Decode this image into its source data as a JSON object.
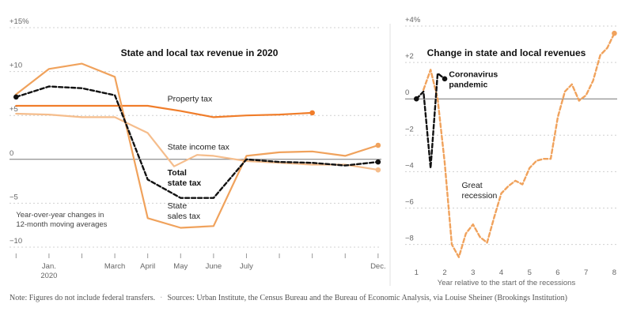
{
  "colors": {
    "property": "#f07d2a",
    "income": "#f5bd8c",
    "sales": "#f0a25c",
    "total": "#111111",
    "recession": "#f0a25c",
    "pandemic": "#111111"
  },
  "footer": {
    "note": "Note: Figures do not include federal transfers.",
    "separator": "·",
    "sources": "Sources: Urban Institute, the Census Bureau and the Bureau of Economic Analysis, via Louise Sheiner (Brookings Institution)"
  },
  "chart_data": [
    {
      "type": "line",
      "title": "State and local tax revenue in 2020",
      "annotation": [
        "Year-over-year changes in",
        "12-month moving averages"
      ],
      "ylim": [
        -10,
        15
      ],
      "yticks": [
        15,
        10,
        5,
        0,
        -5,
        -10
      ],
      "ytick_labels": [
        "+15%",
        "+10",
        "+5",
        "0",
        "−5",
        "−10"
      ],
      "x_range": [
        -0.2,
        11.1
      ],
      "xtick_positions": [
        0,
        1,
        2,
        3,
        4,
        5,
        6,
        7,
        8,
        9,
        10,
        11
      ],
      "xtick_labels": [
        {
          "x": 1,
          "lines": [
            "Jan.",
            "2020"
          ]
        },
        {
          "x": 3,
          "lines": [
            "March"
          ]
        },
        {
          "x": 4,
          "lines": [
            "April"
          ]
        },
        {
          "x": 5,
          "lines": [
            "May"
          ]
        },
        {
          "x": 6,
          "lines": [
            "June"
          ]
        },
        {
          "x": 7,
          "lines": [
            "July"
          ]
        },
        {
          "x": 11,
          "lines": [
            "Dec."
          ]
        }
      ],
      "series": [
        {
          "name": "Property tax",
          "label_lines": [
            "Property tax"
          ],
          "label_bold": false,
          "color_key": "property",
          "x": [
            0,
            1,
            2,
            3,
            4,
            5,
            6,
            7,
            8,
            9
          ],
          "values": [
            6.1,
            6.1,
            6.1,
            6.1,
            6.1,
            5.5,
            4.8,
            5.0,
            5.1,
            5.3
          ],
          "dashed": false,
          "end_marker": true,
          "label_at": [
            4.6,
            6.6
          ]
        },
        {
          "name": "State income tax",
          "label_lines": [
            "State income tax"
          ],
          "label_bold": false,
          "color_key": "income",
          "x": [
            0,
            1,
            2,
            3,
            4,
            4.8,
            5.5,
            6,
            7,
            8,
            9,
            10,
            11
          ],
          "values": [
            5.2,
            5.1,
            4.8,
            4.8,
            3.0,
            -0.8,
            0.5,
            0.4,
            -0.2,
            -0.4,
            -0.6,
            -0.6,
            -1.2
          ],
          "dashed": false,
          "end_marker": true,
          "label_at": [
            4.6,
            1.1
          ]
        },
        {
          "name": "State sales tax",
          "label_lines": [
            "State",
            "sales tax"
          ],
          "label_bold": false,
          "color_key": "sales",
          "x": [
            0,
            1,
            2,
            3,
            4,
            5,
            6,
            7,
            8,
            9,
            10,
            11
          ],
          "values": [
            7.4,
            10.3,
            10.9,
            9.4,
            -6.7,
            -7.8,
            -7.6,
            0.4,
            0.8,
            0.9,
            0.4,
            1.6
          ],
          "dashed": false,
          "end_marker": true,
          "label_at": [
            4.6,
            -5.6
          ]
        },
        {
          "name": "Total state tax",
          "label_lines": [
            "Total",
            "state tax"
          ],
          "label_bold": true,
          "color_key": "total",
          "x": [
            0,
            1,
            2,
            3,
            4,
            5,
            6,
            7,
            8,
            9,
            10,
            11
          ],
          "values": [
            7.1,
            8.3,
            8.1,
            7.3,
            -2.3,
            -4.4,
            -4.4,
            0.0,
            -0.3,
            -0.4,
            -0.7,
            -0.3
          ],
          "dashed": true,
          "start_marker": true,
          "end_marker": true,
          "label_at": [
            4.6,
            -1.8
          ]
        }
      ]
    },
    {
      "type": "line",
      "title": "Change in state and local revenues",
      "xlabel": "Year relative to the start of the recessions",
      "ylim": [
        -8.8,
        4
      ],
      "yticks": [
        4,
        2,
        0,
        -2,
        -4,
        -6,
        -8
      ],
      "ytick_labels": [
        "+4%",
        "+2",
        "0",
        "−2",
        "−4",
        "−6",
        "−8"
      ],
      "xlim": [
        0.6,
        8.1
      ],
      "xticks": [
        1,
        2,
        3,
        4,
        5,
        6,
        7,
        8
      ],
      "series": [
        {
          "name": "Great recession",
          "label_lines": [
            "Great",
            "recession"
          ],
          "label_bold": false,
          "color_key": "recession",
          "x": [
            1.25,
            1.5,
            1.75,
            2.0,
            2.25,
            2.5,
            2.75,
            3.0,
            3.25,
            3.5,
            3.75,
            4.0,
            4.25,
            4.5,
            4.75,
            5.0,
            5.25,
            5.5,
            5.75,
            6.0,
            6.25,
            6.5,
            6.75,
            7.0,
            7.25,
            7.5,
            7.75,
            8.0
          ],
          "values": [
            0.5,
            1.6,
            0.0,
            -3.5,
            -8.0,
            -8.7,
            -7.4,
            -6.9,
            -7.6,
            -7.9,
            -6.5,
            -5.2,
            -4.8,
            -4.5,
            -4.7,
            -3.8,
            -3.4,
            -3.3,
            -3.3,
            -1.0,
            0.4,
            0.8,
            -0.1,
            0.2,
            1.0,
            2.4,
            2.8,
            3.6
          ],
          "dashed": true,
          "end_marker": true,
          "label_at": [
            2.6,
            -4.9
          ]
        },
        {
          "name": "Coronavirus pandemic",
          "label_lines": [
            "Coronavirus",
            "pandemic"
          ],
          "label_bold": true,
          "color_key": "pandemic",
          "x": [
            1.0,
            1.25,
            1.5,
            1.75,
            2.0
          ],
          "values": [
            0.0,
            0.4,
            -3.8,
            1.4,
            1.1
          ],
          "dashed": true,
          "start_marker": true,
          "end_marker": true,
          "label_at": [
            2.15,
            1.2
          ]
        }
      ]
    }
  ]
}
